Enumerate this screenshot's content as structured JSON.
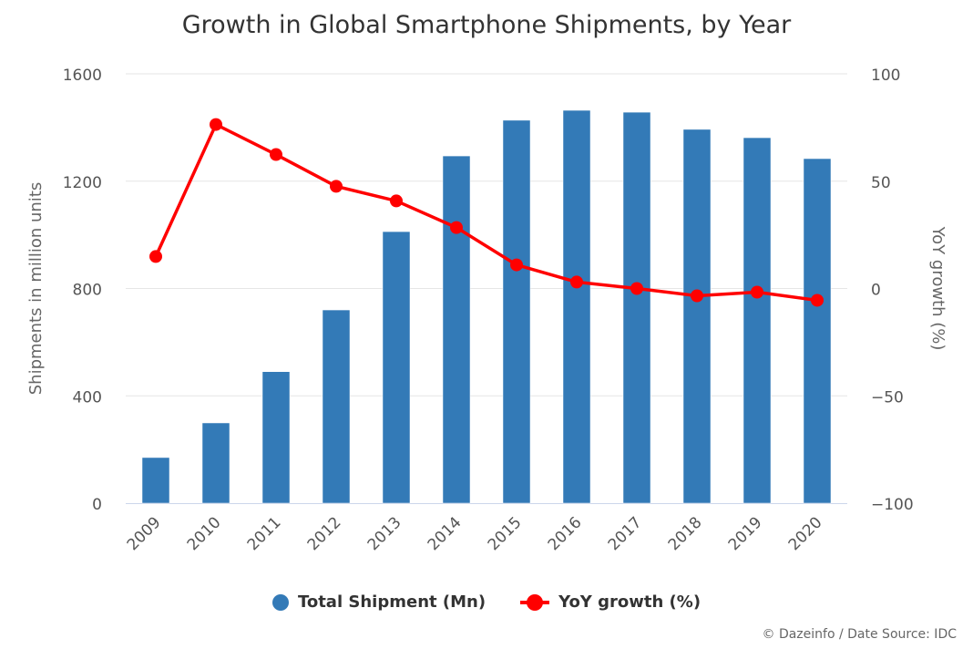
{
  "chart_data": {
    "type": "bar+line",
    "title": "Growth in Global Smartphone Shipments, by Year",
    "categories": [
      "2009",
      "2010",
      "2011",
      "2012",
      "2013",
      "2014",
      "2015",
      "2016",
      "2017",
      "2018",
      "2019",
      "2020"
    ],
    "series": [
      {
        "name": "Total Shipment (Mn)",
        "type": "bar",
        "axis": "left",
        "color": "#337ab7",
        "values": [
          170,
          299,
          490,
          720,
          1012,
          1294,
          1427,
          1464,
          1457,
          1393,
          1362,
          1284
        ]
      },
      {
        "name": "YoY growth (%)",
        "type": "line",
        "axis": "right",
        "color": "#ff0000",
        "values": [
          14.9,
          76.4,
          62.4,
          47.6,
          40.8,
          28.4,
          11.0,
          3.0,
          0.0,
          -3.4,
          -1.7,
          -5.5
        ]
      }
    ],
    "ylabel": "Shipments in million units",
    "ylabel_right": "YoY growth (%)",
    "ylim": [
      0,
      1600
    ],
    "ylim_right": [
      -100,
      100
    ],
    "yticks": [
      "0",
      "400",
      "800",
      "1200",
      "1600"
    ],
    "yticks_right": [
      "−100",
      "−50",
      "0",
      "50",
      "100"
    ],
    "grid": true,
    "legend": "bottom"
  },
  "credit": "© Dazeinfo / Date Source: IDC"
}
